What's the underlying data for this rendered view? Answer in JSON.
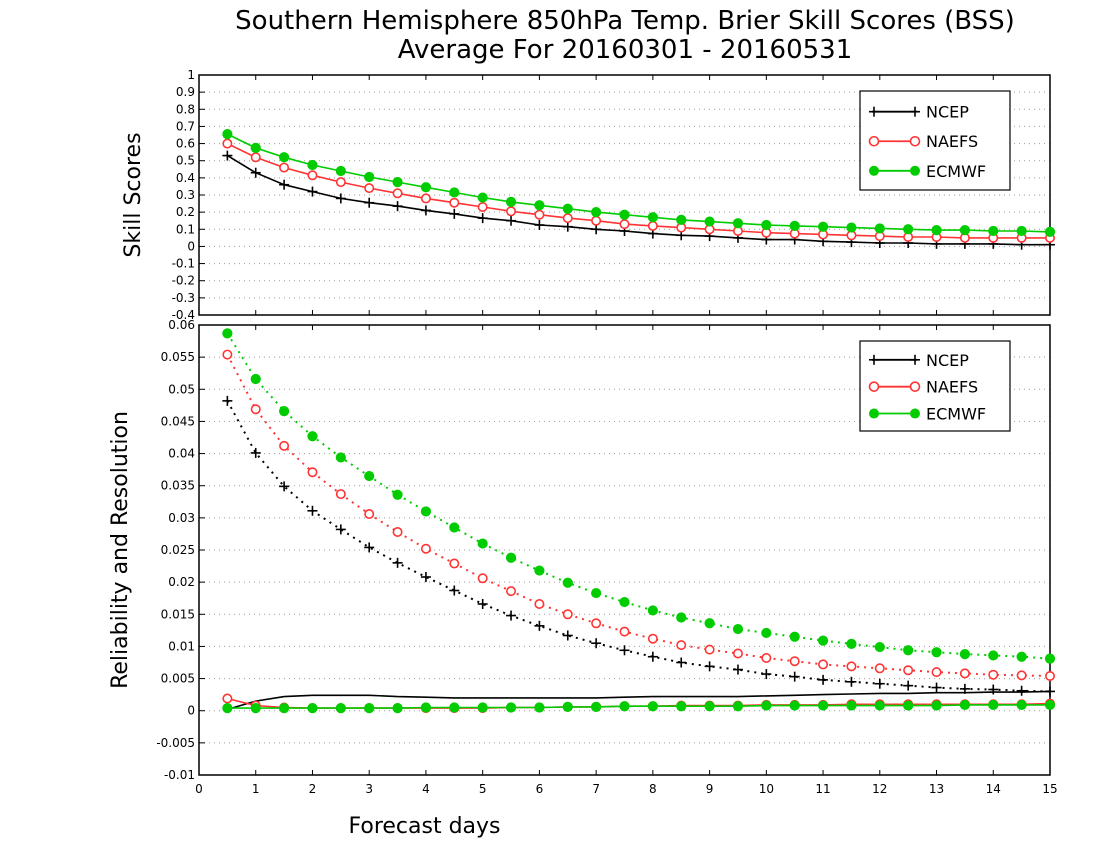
{
  "chart_data": [
    {
      "type": "line",
      "title": "Southern Hemisphere 850hPa Temp. Brier Skill Scores (BSS)",
      "subtitle": "Average For 20160301 - 20160531",
      "ylabel": "Skill Scores",
      "xlabel": "",
      "xlim": [
        0,
        15
      ],
      "ylim": [
        -0.4,
        1
      ],
      "x_ticks": [
        "0",
        "1",
        "2",
        "3",
        "4",
        "5",
        "6",
        "7",
        "8",
        "9",
        "10",
        "11",
        "12",
        "13",
        "14",
        "15"
      ],
      "y_ticks": [
        "-0.4",
        "-0.3",
        "-0.2",
        "-0.1",
        "0",
        "0.1",
        "0.2",
        "0.3",
        "0.4",
        "0.5",
        "0.6",
        "0.7",
        "0.8",
        "0.9",
        "1"
      ],
      "grid": "horizontal dotted",
      "legend_position": "top-right",
      "x": [
        0.5,
        1,
        1.5,
        2,
        2.5,
        3,
        3.5,
        4,
        4.5,
        5,
        5.5,
        6,
        6.5,
        7,
        7.5,
        8,
        8.5,
        9,
        9.5,
        10,
        10.5,
        11,
        11.5,
        12,
        12.5,
        13,
        13.5,
        14,
        14.5,
        15
      ],
      "series": [
        {
          "name": "NCEP",
          "color": "#000000",
          "marker": "plus",
          "line": "solid",
          "values": [
            0.53,
            0.43,
            0.36,
            0.32,
            0.28,
            0.255,
            0.235,
            0.21,
            0.19,
            0.165,
            0.15,
            0.125,
            0.115,
            0.1,
            0.09,
            0.075,
            0.065,
            0.06,
            0.05,
            0.04,
            0.04,
            0.03,
            0.025,
            0.02,
            0.02,
            0.015,
            0.015,
            0.015,
            0.01,
            0.01
          ]
        },
        {
          "name": "NAEFS",
          "color": "#ff3333",
          "marker": "open-circle",
          "line": "solid",
          "values": [
            0.6,
            0.52,
            0.46,
            0.415,
            0.375,
            0.34,
            0.31,
            0.28,
            0.255,
            0.23,
            0.205,
            0.185,
            0.165,
            0.15,
            0.13,
            0.12,
            0.11,
            0.1,
            0.09,
            0.08,
            0.075,
            0.07,
            0.065,
            0.06,
            0.055,
            0.055,
            0.05,
            0.05,
            0.05,
            0.05
          ]
        },
        {
          "name": "ECMWF",
          "color": "#00cc00",
          "marker": "filled-circle",
          "line": "solid",
          "values": [
            0.655,
            0.575,
            0.52,
            0.475,
            0.44,
            0.405,
            0.375,
            0.345,
            0.315,
            0.285,
            0.26,
            0.24,
            0.22,
            0.2,
            0.185,
            0.17,
            0.155,
            0.145,
            0.135,
            0.125,
            0.12,
            0.115,
            0.11,
            0.105,
            0.1,
            0.095,
            0.095,
            0.09,
            0.09,
            0.085
          ]
        }
      ]
    },
    {
      "type": "line",
      "title": "",
      "ylabel": "Reliability and Resolution",
      "xlabel": "Forecast days",
      "xlim": [
        0,
        15
      ],
      "ylim": [
        -0.01,
        0.06
      ],
      "x_ticks": [
        "0",
        "1",
        "2",
        "3",
        "4",
        "5",
        "6",
        "7",
        "8",
        "9",
        "10",
        "11",
        "12",
        "13",
        "14",
        "15"
      ],
      "y_ticks": [
        "-0.01",
        "-0.005",
        "0",
        "0.005",
        "0.01",
        "0.015",
        "0.02",
        "0.025",
        "0.03",
        "0.035",
        "0.04",
        "0.045",
        "0.05",
        "0.055",
        "0.06"
      ],
      "grid": "horizontal dotted",
      "legend_position": "top-right",
      "x": [
        0.5,
        1,
        1.5,
        2,
        2.5,
        3,
        3.5,
        4,
        4.5,
        5,
        5.5,
        6,
        6.5,
        7,
        7.5,
        8,
        8.5,
        9,
        9.5,
        10,
        10.5,
        11,
        11.5,
        12,
        12.5,
        13,
        13.5,
        14,
        14.5,
        15
      ],
      "series": [
        {
          "name": "NCEP",
          "color": "#000000",
          "marker": "plus",
          "line": "dotted",
          "values": [
            0.0482,
            0.0401,
            0.0349,
            0.0311,
            0.0282,
            0.0254,
            0.023,
            0.0208,
            0.0187,
            0.0166,
            0.0148,
            0.0132,
            0.0117,
            0.0105,
            0.0094,
            0.0084,
            0.0075,
            0.0069,
            0.0064,
            0.0057,
            0.0053,
            0.0048,
            0.0045,
            0.0042,
            0.0039,
            0.0036,
            0.0034,
            0.0033,
            0.0031,
            0.003
          ]
        },
        {
          "name": "NAEFS",
          "color": "#ff3333",
          "marker": "open-circle",
          "line": "dotted",
          "values": [
            0.0554,
            0.0469,
            0.0412,
            0.0371,
            0.0337,
            0.0306,
            0.0278,
            0.0252,
            0.0229,
            0.0206,
            0.0186,
            0.0166,
            0.015,
            0.0136,
            0.0123,
            0.0112,
            0.0102,
            0.0095,
            0.0089,
            0.0082,
            0.0077,
            0.0072,
            0.0069,
            0.0066,
            0.0063,
            0.006,
            0.0058,
            0.0056,
            0.0055,
            0.0054
          ]
        },
        {
          "name": "ECMWF",
          "color": "#00cc00",
          "marker": "filled-circle",
          "line": "dotted",
          "values": [
            0.0587,
            0.0516,
            0.0466,
            0.0427,
            0.0394,
            0.0365,
            0.0336,
            0.031,
            0.0285,
            0.026,
            0.0238,
            0.0218,
            0.0199,
            0.0183,
            0.0169,
            0.0156,
            0.0145,
            0.0136,
            0.0127,
            0.0121,
            0.0115,
            0.0109,
            0.0104,
            0.0099,
            0.0094,
            0.0091,
            0.0088,
            0.0086,
            0.0084,
            0.0081
          ]
        },
        {
          "name": "",
          "color": "#000000",
          "marker": "none",
          "line": "solid",
          "values": [
            0.0002,
            0.0015,
            0.0022,
            0.0024,
            0.0024,
            0.0024,
            0.0022,
            0.0021,
            0.002,
            0.002,
            0.002,
            0.002,
            0.002,
            0.002,
            0.0021,
            0.0022,
            0.0022,
            0.0022,
            0.0022,
            0.0023,
            0.0024,
            0.0025,
            0.0026,
            0.0027,
            0.0027,
            0.0028,
            0.0028,
            0.0029,
            0.0029,
            0.003
          ]
        },
        {
          "name": "",
          "color": "#ff3333",
          "marker": "open-circle",
          "line": "solid",
          "values": [
            0.0019,
            0.0008,
            0.0005,
            0.0004,
            0.0004,
            0.0004,
            0.0004,
            0.0004,
            0.0004,
            0.0004,
            0.0005,
            0.0005,
            0.0006,
            0.0006,
            0.0007,
            0.0007,
            0.0008,
            0.0008,
            0.0008,
            0.0009,
            0.0009,
            0.0009,
            0.001,
            0.001,
            0.001,
            0.001,
            0.001,
            0.001,
            0.001,
            0.0011
          ]
        },
        {
          "name": "",
          "color": "#00cc00",
          "marker": "filled-circle",
          "line": "solid",
          "values": [
            0.0004,
            0.0004,
            0.0004,
            0.0004,
            0.0004,
            0.0004,
            0.0004,
            0.0005,
            0.0005,
            0.0005,
            0.0005,
            0.0005,
            0.0006,
            0.0006,
            0.0007,
            0.0007,
            0.0007,
            0.0007,
            0.0007,
            0.0008,
            0.0008,
            0.0008,
            0.0008,
            0.0008,
            0.0008,
            0.0008,
            0.0009,
            0.0009,
            0.0009,
            0.0009
          ]
        }
      ]
    }
  ]
}
